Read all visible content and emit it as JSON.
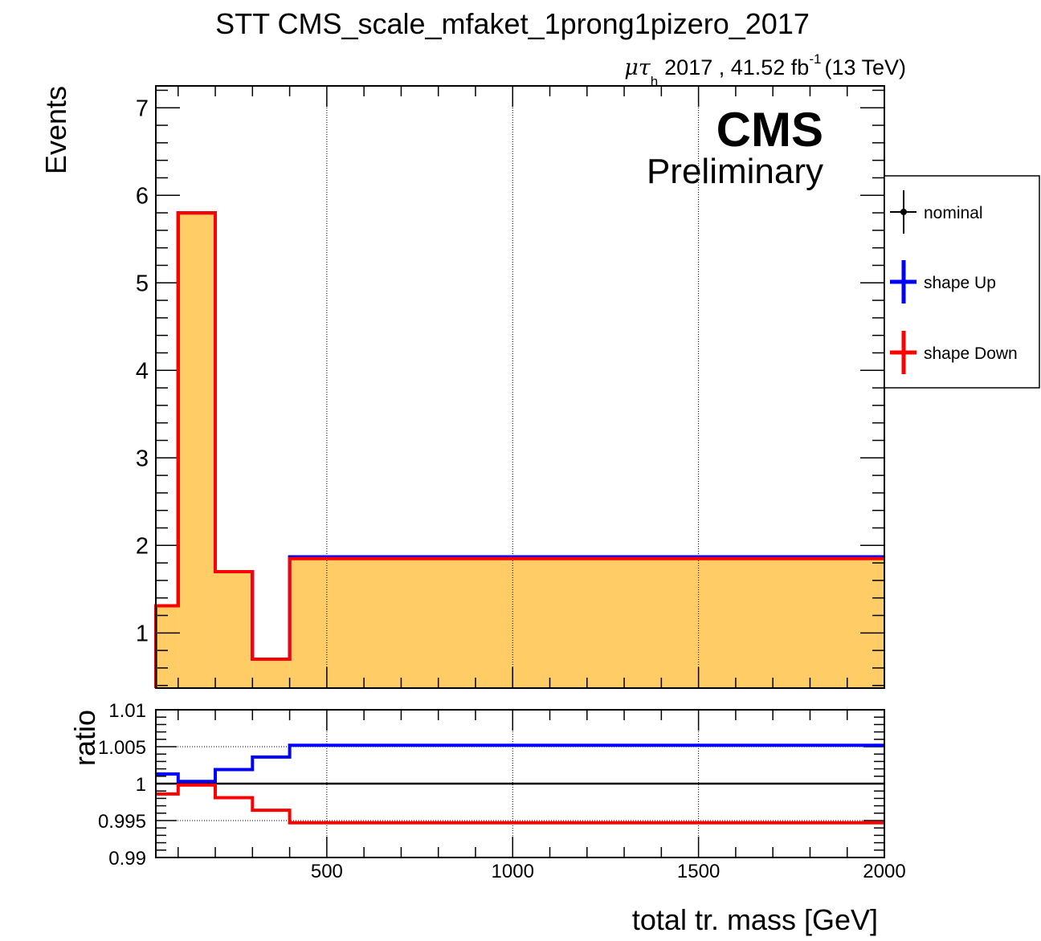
{
  "title": "STT CMS_scale_mfaket_1prong1pizero_2017",
  "lumi": {
    "channel_main": "μτ",
    "channel_sub": "h",
    "text": "2017 , 41.52 fb",
    "superscript": "-1",
    "energy": "(13 TeV)"
  },
  "cms_label": "CMS",
  "preliminary_label": "Preliminary",
  "legend": {
    "items": [
      {
        "label": "nominal",
        "color": "#000000"
      },
      {
        "label": "shape Up",
        "color": "#0000ff"
      },
      {
        "label": "shape Down",
        "color": "#ff0000"
      }
    ]
  },
  "chart_data": [
    {
      "type": "step",
      "panel": "main",
      "ylabel": "Events",
      "xlim": [
        40,
        2000
      ],
      "ylim": [
        0.37,
        7.25
      ],
      "yticks": [
        1,
        2,
        3,
        4,
        5,
        6,
        7
      ],
      "xtick_gridlines": [
        500,
        1000,
        1500
      ],
      "bin_edges": [
        40,
        100,
        200,
        300,
        400,
        2000
      ],
      "fill_color": "#ffcc66",
      "series": [
        {
          "name": "nominal",
          "color": "#000000",
          "values": [
            1.31,
            5.8,
            1.7,
            0.7,
            1.86
          ]
        },
        {
          "name": "shape Up",
          "color": "#0000ff",
          "values": [
            1.31,
            5.8,
            1.7,
            0.7,
            1.87
          ]
        },
        {
          "name": "shape Down",
          "color": "#ff0000",
          "values": [
            1.31,
            5.8,
            1.7,
            0.7,
            1.85
          ]
        }
      ]
    },
    {
      "type": "step",
      "panel": "ratio",
      "ylabel": "ratio",
      "xlabel": "total tr. mass [GeV]",
      "xlim": [
        40,
        2000
      ],
      "ylim": [
        0.99,
        1.01
      ],
      "yticks": [
        0.99,
        0.995,
        1,
        1.005,
        1.01
      ],
      "yticklabels": [
        "0.99",
        "0.995",
        "1",
        "1.005",
        "1.01"
      ],
      "xticks": [
        500,
        1000,
        1500,
        2000
      ],
      "xticklabels": [
        "500",
        "1000",
        "1500",
        "2000"
      ],
      "ygrid": [
        0.995,
        1.005
      ],
      "bin_edges": [
        40,
        100,
        200,
        300,
        400,
        2000
      ],
      "series": [
        {
          "name": "shape Up",
          "color": "#0000ff",
          "values": [
            1.0013,
            1.0003,
            1.0019,
            1.0036,
            1.0052
          ]
        },
        {
          "name": "shape Down",
          "color": "#ff0000",
          "values": [
            0.9986,
            0.9998,
            0.9981,
            0.9964,
            0.9947
          ]
        }
      ]
    }
  ]
}
